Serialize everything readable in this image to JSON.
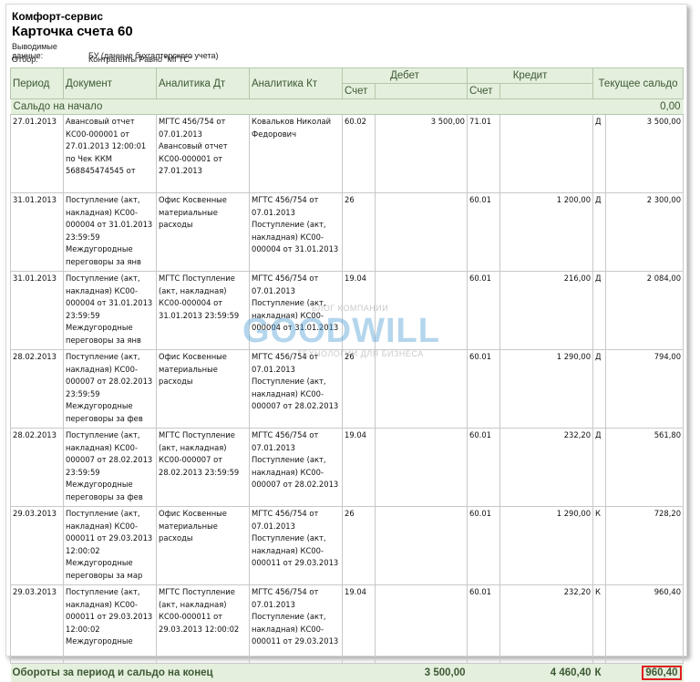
{
  "report": {
    "company": "Комфорт-сервис",
    "title": "Карточка счета 60",
    "output_label": "Выводимые данные:",
    "output_value": "БУ (данные бухгалтерского учета)",
    "filter_label": "Отбор:",
    "filter_value": "Контрагенты Равно \"МГТС\""
  },
  "columns": {
    "period": "Период",
    "document": "Документ",
    "analytics_dt": "Аналитика Дт",
    "analytics_kt": "Аналитика Кт",
    "debit": "Дебет",
    "credit": "Кредит",
    "balance": "Текущее сальдо",
    "account": "Счет"
  },
  "opening": {
    "label": "Сальдо на начало",
    "value": "0,00"
  },
  "rows": [
    {
      "period": "27.01.2013",
      "document": "Авансовый отчет КС00-000001 от 27.01.2013 12:00:01 по Чек ККМ 568845474545 от",
      "analytics_dt": "МГТС 456/754 от 07.01.2013 Авансовый отчет КС00-000001 от 27.01.2013",
      "analytics_kt": "Ковальков Николай Федорович",
      "debit_account": "60.02",
      "debit_amount": "3 500,00",
      "credit_account": "71.01",
      "credit_amount": "",
      "balance_side": "Д",
      "balance_amount": "3 500,00"
    },
    {
      "period": "31.01.2013",
      "document": "Поступление (акт, накладная) КС00-000004 от 31.01.2013 23:59:59 Междугородные переговоры за янв",
      "analytics_dt": "Офис Косвенные материальные расходы",
      "analytics_kt": "МГТС 456/754 от 07.01.2013 Поступление (акт, накладная) КС00-000004 от 31.01.2013",
      "debit_account": "26",
      "debit_amount": "",
      "credit_account": "60.01",
      "credit_amount": "1 200,00",
      "balance_side": "Д",
      "balance_amount": "2 300,00"
    },
    {
      "period": "31.01.2013",
      "document": "Поступление (акт, накладная) КС00-000004 от 31.01.2013 23:59:59 Междугородные переговоры за янв",
      "analytics_dt": "МГТС Поступление (акт, накладная) КС00-000004 от 31.01.2013 23:59:59",
      "analytics_kt": "МГТС 456/754 от 07.01.2013 Поступление (акт, накладная) КС00-000004 от 31.01.2013",
      "debit_account": "19.04",
      "debit_amount": "",
      "credit_account": "60.01",
      "credit_amount": "216,00",
      "balance_side": "Д",
      "balance_amount": "2 084,00"
    },
    {
      "period": "28.02.2013",
      "document": "Поступление (акт, накладная) КС00-000007 от 28.02.2013 23:59:59 Междугородные переговоры за фев",
      "analytics_dt": "Офис Косвенные материальные расходы",
      "analytics_kt": "МГТС 456/754 от 07.01.2013 Поступление (акт, накладная) КС00-000007 от 28.02.2013",
      "debit_account": "26",
      "debit_amount": "",
      "credit_account": "60.01",
      "credit_amount": "1 290,00",
      "balance_side": "Д",
      "balance_amount": "794,00"
    },
    {
      "period": "28.02.2013",
      "document": "Поступление (акт, накладная) КС00-000007 от 28.02.2013 23:59:59 Междугородные переговоры за фев",
      "analytics_dt": "МГТС Поступление (акт, накладная) КС00-000007 от 28.02.2013 23:59:59",
      "analytics_kt": "МГТС 456/754 от 07.01.2013 Поступление (акт, накладная) КС00-000007 от 28.02.2013",
      "debit_account": "19.04",
      "debit_amount": "",
      "credit_account": "60.01",
      "credit_amount": "232,20",
      "balance_side": "Д",
      "balance_amount": "561,80"
    },
    {
      "period": "29.03.2013",
      "document": "Поступление (акт, накладная) КС00-000011 от 29.03.2013 12:00:02 Междугородные переговоры за мар",
      "analytics_dt": "Офис Косвенные материальные расходы",
      "analytics_kt": "МГТС 456/754 от 07.01.2013 Поступление (акт, накладная) КС00-000011 от 29.03.2013",
      "debit_account": "26",
      "debit_amount": "",
      "credit_account": "60.01",
      "credit_amount": "1 290,00",
      "balance_side": "К",
      "balance_amount": "728,20"
    },
    {
      "period": "29.03.2013",
      "document": "Поступление (акт, накладная) КС00-000011 от 29.03.2013 12:00:02 Междугородные",
      "analytics_dt": "МГТС Поступление (акт, накладная) КС00-000011 от 29.03.2013 12:00:02",
      "analytics_kt": "МГТС 456/754 от 07.01.2013 Поступление (акт, накладная) КС00-000011 от 29.03.2013",
      "debit_account": "19.04",
      "debit_amount": "",
      "credit_account": "60.01",
      "credit_amount": "232,20",
      "balance_side": "К",
      "balance_amount": "960,40"
    }
  ],
  "totals": {
    "label": "Обороты за период и сальдо на конец",
    "debit": "3 500,00",
    "credit": "4 460,40",
    "side": "К",
    "balance": "960,40"
  },
  "watermark": {
    "tag": "БЛОГ КОМПАНИИ",
    "brand": "GOODWILL",
    "sub": "ТЕХНОЛОГИИ ДЛЯ БИЗНЕСА"
  }
}
